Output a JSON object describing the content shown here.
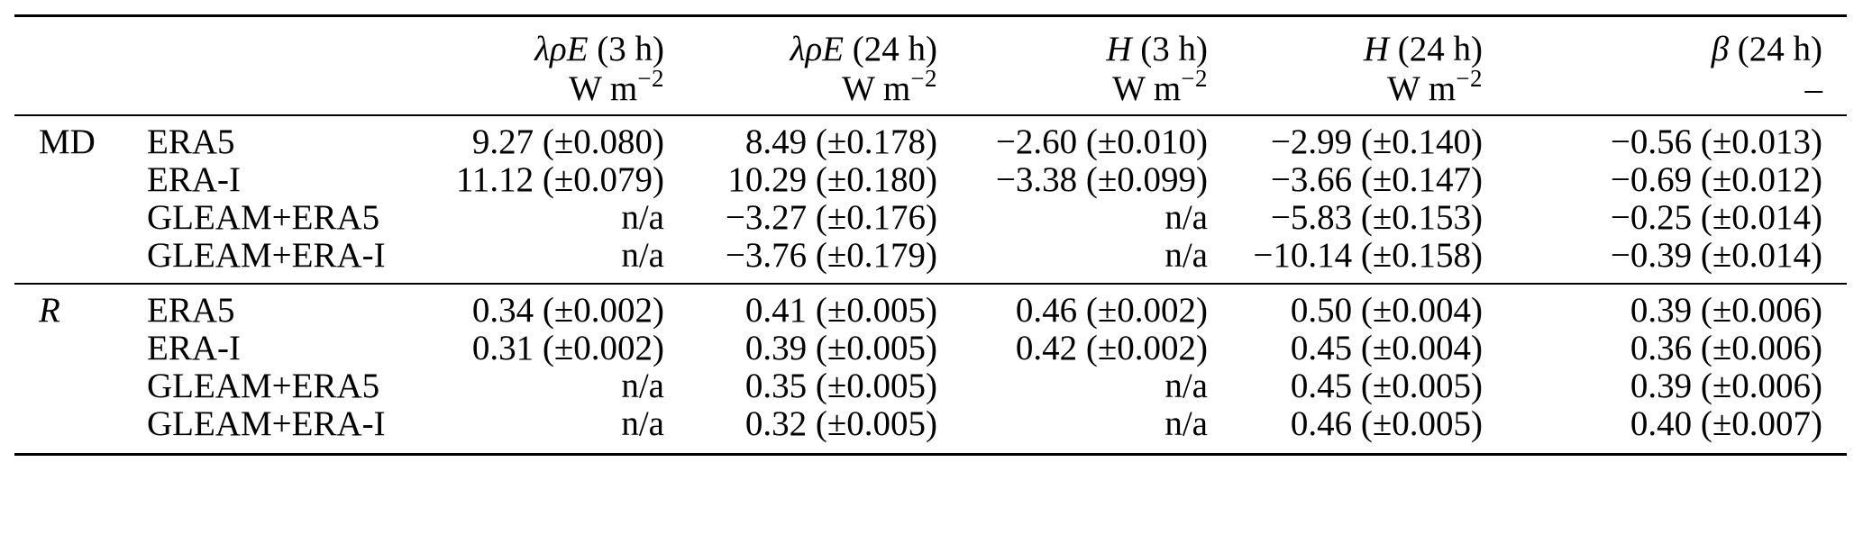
{
  "table": {
    "header": {
      "columns": [
        {
          "symbol": "λρE",
          "period": " (3 h)",
          "unit": "W m",
          "unit_exp": "−2"
        },
        {
          "symbol": "λρE",
          "period": " (24 h)",
          "unit": "W m",
          "unit_exp": "−2"
        },
        {
          "symbol": "H",
          "period": " (3 h)",
          "unit": "W m",
          "unit_exp": "−2"
        },
        {
          "symbol": "H",
          "period": " (24 h)",
          "unit": "W m",
          "unit_exp": "−2"
        },
        {
          "symbol": "β",
          "period": " (24 h)",
          "unit": "–",
          "unit_exp": ""
        }
      ]
    },
    "blocks": [
      {
        "group": "MD",
        "rows": [
          {
            "dataset": "ERA5",
            "values": [
              "9.27 (±0.080)",
              "8.49 (±0.178)",
              "−2.60 (±0.010)",
              "−2.99 (±0.140)",
              "−0.56 (±0.013)"
            ]
          },
          {
            "dataset": "ERA-I",
            "values": [
              "11.12 (±0.079)",
              "10.29 (±0.180)",
              "−3.38 (±0.099)",
              "−3.66 (±0.147)",
              "−0.69 (±0.012)"
            ]
          },
          {
            "dataset": "GLEAM+ERA5",
            "values": [
              "n/a",
              "−3.27 (±0.176)",
              "n/a",
              "−5.83 (±0.153)",
              "−0.25 (±0.014)"
            ]
          },
          {
            "dataset": "GLEAM+ERA-I",
            "values": [
              "n/a",
              "−3.76 (±0.179)",
              "n/a",
              "−10.14 (±0.158)",
              "−0.39 (±0.014)"
            ]
          }
        ]
      },
      {
        "group": "R",
        "rows": [
          {
            "dataset": "ERA5",
            "values": [
              "0.34 (±0.002)",
              "0.41 (±0.005)",
              "0.46 (±0.002)",
              "0.50 (±0.004)",
              "0.39 (±0.006)"
            ]
          },
          {
            "dataset": "ERA-I",
            "values": [
              "0.31 (±0.002)",
              "0.39 (±0.005)",
              "0.42 (±0.002)",
              "0.45 (±0.004)",
              "0.36 (±0.006)"
            ]
          },
          {
            "dataset": "GLEAM+ERA5",
            "values": [
              "n/a",
              "0.35 (±0.005)",
              "n/a",
              "0.45 (±0.005)",
              "0.39 (±0.006)"
            ]
          },
          {
            "dataset": "GLEAM+ERA-I",
            "values": [
              "n/a",
              "0.32 (±0.005)",
              "n/a",
              "0.46 (±0.005)",
              "0.40 (±0.007)"
            ]
          }
        ]
      }
    ]
  }
}
